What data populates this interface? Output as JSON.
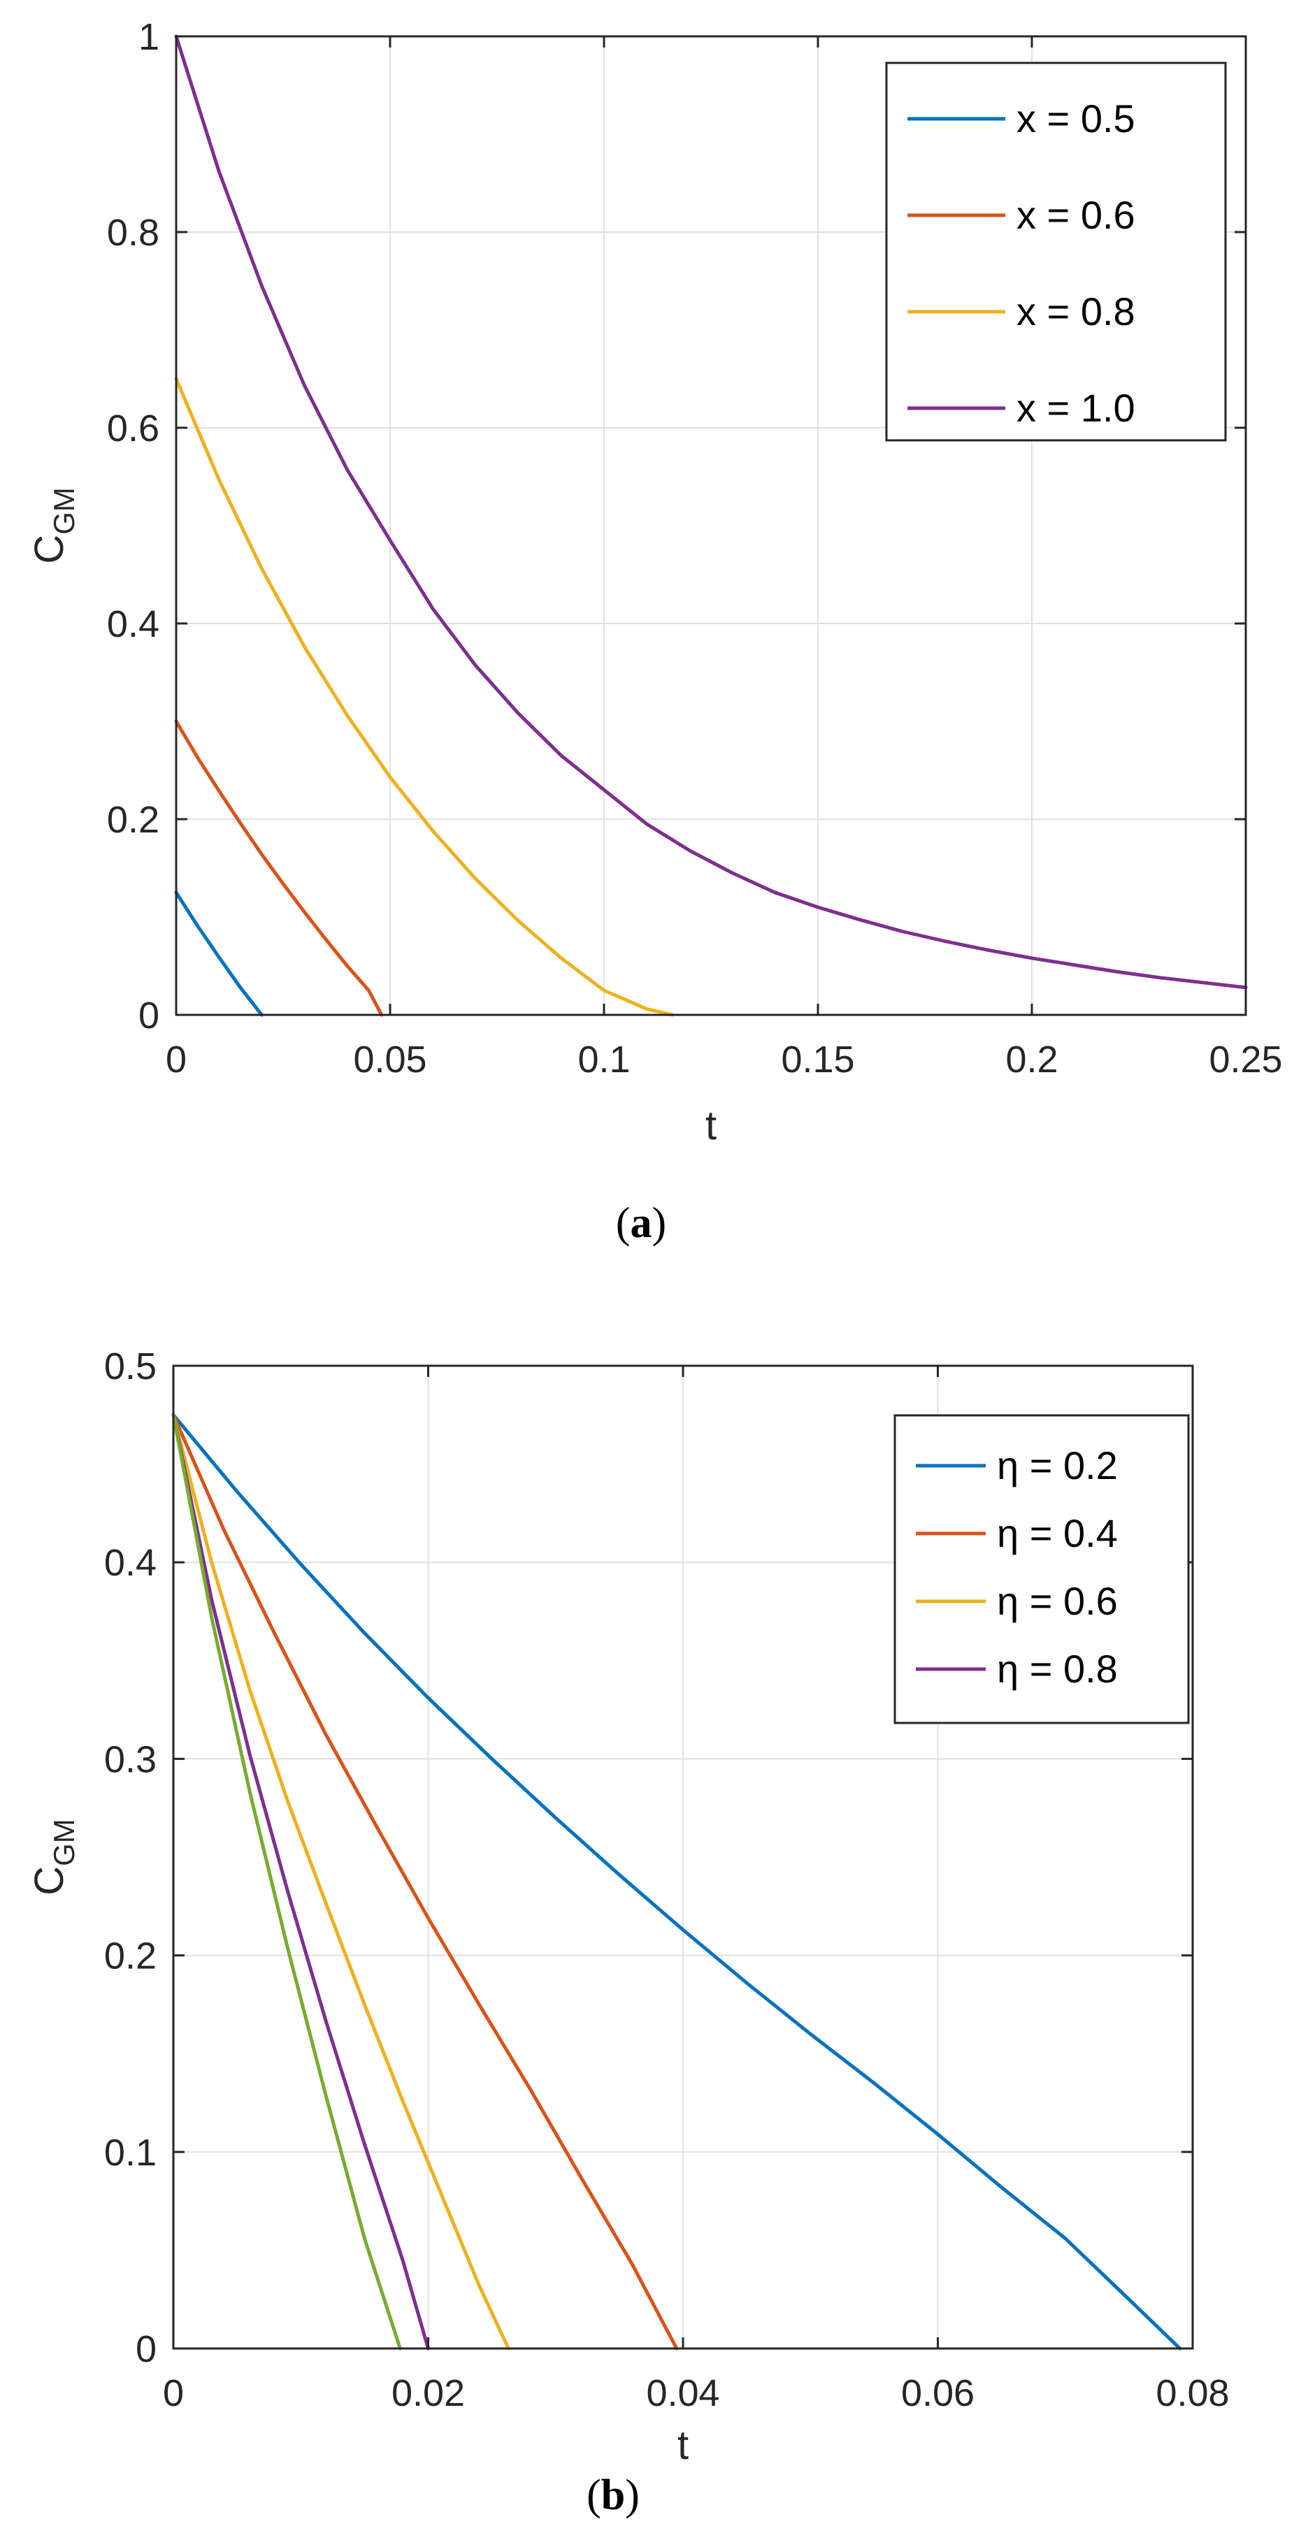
{
  "colors": {
    "blue": "#0072BD",
    "orange": "#D95319",
    "yellow": "#EDB120",
    "purple": "#7E2F8E",
    "green": "#77AC30"
  },
  "chart_data": [
    {
      "type": "line",
      "caption": "(a)",
      "caption_open": "(",
      "caption_letter": "a",
      "caption_close": ")",
      "xlabel": "t",
      "ylabel": "C",
      "ylabel_sub": "GM",
      "xlim": [
        0,
        0.25
      ],
      "ylim": [
        0,
        1
      ],
      "xticks": [
        0,
        0.05,
        0.1,
        0.15,
        0.2,
        0.25
      ],
      "xtick_labels": [
        "0",
        "0.05",
        "0.1",
        "0.15",
        "0.2",
        "0.25"
      ],
      "yticks": [
        0,
        0.2,
        0.4,
        0.6,
        0.8,
        1
      ],
      "ytick_labels": [
        "0",
        "0.2",
        "0.4",
        "0.6",
        "0.8",
        "1"
      ],
      "grid": true,
      "legend_position": "top-right",
      "series": [
        {
          "name": "x = 0.5",
          "color": "#0072BD",
          "x": [
            0,
            0.005,
            0.01,
            0.015,
            0.02
          ],
          "y": [
            0.125,
            0.091,
            0.059,
            0.028,
            0.0
          ]
        },
        {
          "name": "x = 0.6",
          "color": "#D95319",
          "x": [
            0,
            0.005,
            0.01,
            0.015,
            0.02,
            0.025,
            0.03,
            0.035,
            0.04,
            0.045,
            0.048
          ],
          "y": [
            0.3,
            0.263,
            0.229,
            0.196,
            0.164,
            0.134,
            0.105,
            0.077,
            0.05,
            0.025,
            0.0
          ]
        },
        {
          "name": "x = 0.8",
          "color": "#EDB120",
          "x": [
            0,
            0.01,
            0.02,
            0.03,
            0.04,
            0.05,
            0.06,
            0.07,
            0.08,
            0.09,
            0.1,
            0.11,
            0.116
          ],
          "y": [
            0.65,
            0.547,
            0.456,
            0.376,
            0.306,
            0.243,
            0.188,
            0.139,
            0.096,
            0.058,
            0.025,
            0.006,
            0.0
          ]
        },
        {
          "name": "x = 1.0",
          "color": "#7E2F8E",
          "x": [
            0,
            0.01,
            0.02,
            0.03,
            0.04,
            0.05,
            0.06,
            0.07,
            0.08,
            0.09,
            0.1,
            0.11,
            0.12,
            0.13,
            0.14,
            0.15,
            0.16,
            0.17,
            0.18,
            0.19,
            0.2,
            0.21,
            0.22,
            0.23,
            0.24,
            0.25
          ],
          "y": [
            1.0,
            0.862,
            0.745,
            0.643,
            0.557,
            0.485,
            0.415,
            0.357,
            0.308,
            0.265,
            0.23,
            0.195,
            0.168,
            0.145,
            0.125,
            0.11,
            0.097,
            0.085,
            0.075,
            0.066,
            0.058,
            0.051,
            0.044,
            0.038,
            0.033,
            0.028
          ]
        }
      ]
    },
    {
      "type": "line",
      "caption": "(b)",
      "caption_open": "(",
      "caption_letter": "b",
      "caption_close": ")",
      "xlabel": "t",
      "ylabel": "C",
      "ylabel_sub": "GM",
      "xlim": [
        0,
        0.08
      ],
      "ylim": [
        0,
        0.5
      ],
      "xticks": [
        0,
        0.02,
        0.04,
        0.06,
        0.08
      ],
      "xtick_labels": [
        "0",
        "0.02",
        "0.04",
        "0.06",
        "0.08"
      ],
      "yticks": [
        0,
        0.1,
        0.2,
        0.3,
        0.4,
        0.5
      ],
      "ytick_labels": [
        "0",
        "0.1",
        "0.2",
        "0.3",
        "0.4",
        "0.5"
      ],
      "grid": true,
      "legend_position": "top-right",
      "series": [
        {
          "name": "η = 0.2",
          "color": "#0072BD",
          "x": [
            0,
            0.005,
            0.01,
            0.015,
            0.02,
            0.025,
            0.03,
            0.035,
            0.04,
            0.045,
            0.05,
            0.055,
            0.06,
            0.065,
            0.07,
            0.075,
            0.079
          ],
          "y": [
            0.475,
            0.436,
            0.399,
            0.364,
            0.331,
            0.3,
            0.27,
            0.241,
            0.213,
            0.186,
            0.16,
            0.135,
            0.109,
            0.082,
            0.056,
            0.025,
            0.0
          ]
        },
        {
          "name": "η = 0.4",
          "color": "#D95319",
          "x": [
            0,
            0.004,
            0.008,
            0.012,
            0.016,
            0.02,
            0.024,
            0.028,
            0.032,
            0.036,
            0.0395
          ],
          "y": [
            0.475,
            0.416,
            0.363,
            0.312,
            0.265,
            0.219,
            0.175,
            0.132,
            0.087,
            0.043,
            0.0
          ]
        },
        {
          "name": "η = 0.6",
          "color": "#EDB120",
          "x": [
            0,
            0.003,
            0.006,
            0.009,
            0.012,
            0.015,
            0.018,
            0.021,
            0.024,
            0.0263
          ],
          "y": [
            0.475,
            0.4,
            0.335,
            0.278,
            0.226,
            0.175,
            0.126,
            0.079,
            0.032,
            0.0
          ]
        },
        {
          "name": "η = 0.8",
          "color": "#7E2F8E",
          "x": [
            0,
            0.003,
            0.006,
            0.009,
            0.012,
            0.015,
            0.018,
            0.02
          ],
          "y": [
            0.475,
            0.381,
            0.302,
            0.232,
            0.166,
            0.104,
            0.045,
            0.0
          ]
        },
        {
          "name": "",
          "color": "#77AC30",
          "legend": false,
          "x": [
            0,
            0.003,
            0.006,
            0.009,
            0.012,
            0.015,
            0.0178
          ],
          "y": [
            0.475,
            0.372,
            0.283,
            0.203,
            0.128,
            0.056,
            0.0
          ]
        }
      ]
    }
  ]
}
